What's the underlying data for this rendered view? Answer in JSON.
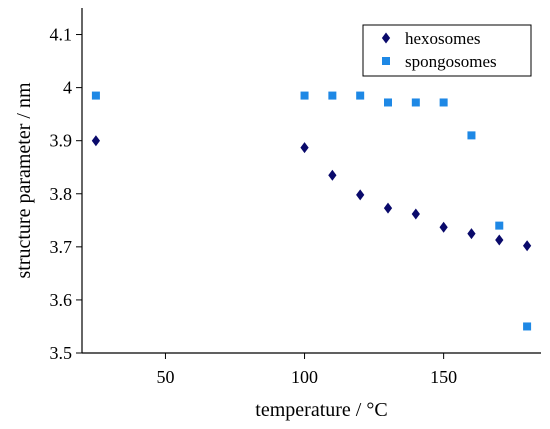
{
  "chart_data": {
    "type": "scatter",
    "xlabel": "temperature / °C",
    "ylabel": "structure parameter / nm",
    "xlim": [
      20,
      185
    ],
    "ylim": [
      3.5,
      4.15
    ],
    "xticks": [
      50,
      100,
      150
    ],
    "yticks": [
      3.5,
      3.6,
      3.7,
      3.8,
      3.9,
      4.0,
      4.1
    ],
    "ytick_labels": [
      "3.5",
      "3.6",
      "3.7",
      "3.8",
      "3.9",
      "4",
      "4.1"
    ],
    "grid": false,
    "legend_position": "top-right",
    "series": [
      {
        "name": "hexosomes",
        "marker": "diamond",
        "color": "#0a0a6b",
        "x": [
          25,
          100,
          110,
          120,
          130,
          140,
          150,
          160,
          170,
          180
        ],
        "y": [
          3.9,
          3.887,
          3.835,
          3.798,
          3.773,
          3.762,
          3.737,
          3.725,
          3.713,
          3.702
        ]
      },
      {
        "name": "spongosomes",
        "marker": "square",
        "color": "#1e88e5",
        "x": [
          25,
          100,
          110,
          120,
          130,
          140,
          150,
          160,
          170,
          180
        ],
        "y": [
          3.985,
          3.985,
          3.985,
          3.985,
          3.972,
          3.972,
          3.972,
          3.91,
          3.74,
          3.55
        ]
      }
    ]
  }
}
